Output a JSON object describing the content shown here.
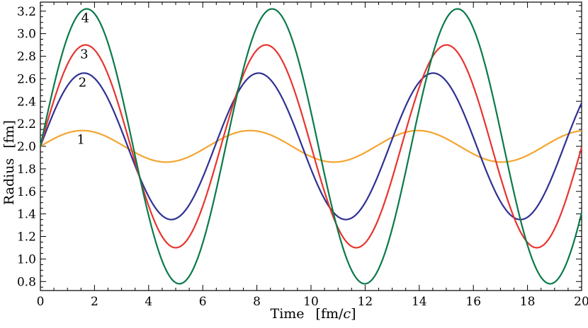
{
  "chart_data": {
    "type": "line",
    "xlabel": "Time",
    "xlabel_unit_prefix": "[fm/",
    "xlabel_unit_var": "c",
    "xlabel_unit_suffix": "]",
    "ylabel": "Radius",
    "ylabel_unit": "[fm]",
    "xlim": [
      0,
      20
    ],
    "ylim": [
      0.72,
      3.28
    ],
    "xticks": [
      0,
      2,
      4,
      6,
      8,
      10,
      12,
      14,
      16,
      18,
      20
    ],
    "xtick_labels": [
      "0",
      "2",
      "4",
      "6",
      "8",
      "10",
      "12",
      "14",
      "16",
      "18",
      "20"
    ],
    "yticks": [
      0.8,
      1.0,
      1.2,
      1.4,
      1.6,
      1.8,
      2.0,
      2.2,
      2.4,
      2.6,
      2.8,
      3.0,
      3.2
    ],
    "ytick_labels": [
      "0.8",
      "1.0",
      "1.2",
      "1.4",
      "1.6",
      "1.8",
      "2.0",
      "2.2",
      "2.4",
      "2.6",
      "2.8",
      "3.0",
      "3.2"
    ],
    "grid": false,
    "legend": "none",
    "series": [
      {
        "label": "1",
        "color": "#f5a430",
        "center": 2.0,
        "amplitude": 0.14,
        "period": 6.2,
        "peaks": [
          1.55,
          7.75,
          13.95
        ],
        "troughs": [
          4.65,
          10.85,
          17.05
        ]
      },
      {
        "label": "2",
        "color": "#2e3192",
        "center": 2.0,
        "amplitude": 0.65,
        "period": 6.45,
        "peaks": [
          1.61,
          8.06,
          14.51
        ],
        "troughs": [
          4.84,
          11.29,
          17.74
        ]
      },
      {
        "label": "3",
        "color": "#e8342e",
        "center": 2.0,
        "amplitude": 0.9,
        "period": 6.67,
        "peaks": [
          1.67,
          8.34,
          15.0
        ],
        "troughs": [
          5.0,
          11.67,
          18.35
        ]
      },
      {
        "label": "4",
        "color": "#0a7a4a",
        "center": 2.0,
        "amplitude": 1.22,
        "period": 6.85,
        "peaks": [
          1.71,
          8.56,
          15.41
        ],
        "troughs": [
          5.14,
          11.99,
          18.84
        ]
      }
    ]
  }
}
